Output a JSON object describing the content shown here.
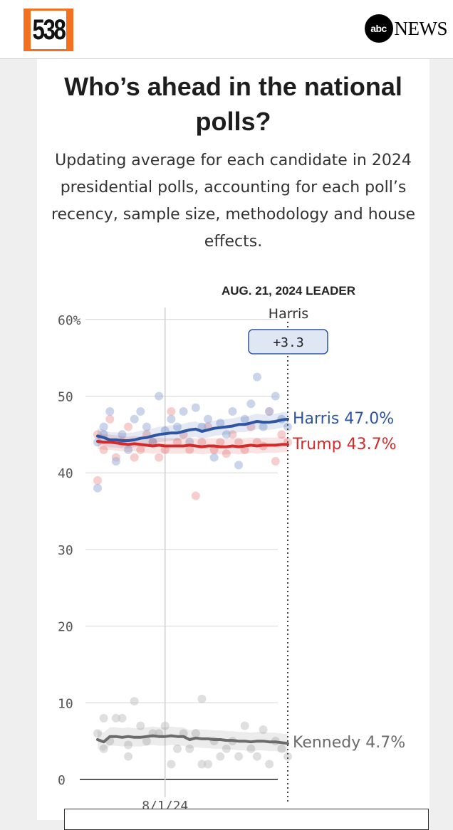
{
  "header": {
    "logo_text": "538",
    "partner_badge": "abc",
    "partner_name": "NEWS"
  },
  "title": "Who’s ahead in the national polls?",
  "subtitle": "Updating average for each candidate in 2024 presidential polls, accounting for each poll’s recency, sample size, methodology and house effects.",
  "colors": {
    "harris": "#2d55a3",
    "trump": "#d42a2a",
    "kennedy": "#6b6b6b",
    "accent_orange": "#f37021",
    "badge_bg": "#dfe6f4"
  },
  "chart_data": {
    "type": "line",
    "leader_date": "AUG. 21, 2024 LEADER",
    "leader_name": "Harris",
    "leader_margin": "+3.3",
    "y_ticks": [
      "60%",
      "50",
      "40",
      "30",
      "20",
      "10",
      "0"
    ],
    "y_tick_values": [
      60,
      50,
      40,
      30,
      20,
      10,
      0
    ],
    "ylim": [
      0,
      60
    ],
    "x_tick_label": "8/1/24",
    "x_tick_date": "2024-08-01",
    "xlim": [
      "2024-07-21",
      "2024-08-21"
    ],
    "grid": true,
    "series": [
      {
        "name": "Harris",
        "end_label": "Harris 47.0%",
        "points": [
          [
            "2024-07-21",
            44.8
          ],
          [
            "2024-07-22",
            44.6
          ],
          [
            "2024-07-23",
            44.3
          ],
          [
            "2024-07-24",
            44.3
          ],
          [
            "2024-07-25",
            44.2
          ],
          [
            "2024-07-26",
            44.2
          ],
          [
            "2024-07-27",
            44.3
          ],
          [
            "2024-07-28",
            44.5
          ],
          [
            "2024-07-29",
            44.6
          ],
          [
            "2024-07-30",
            44.8
          ],
          [
            "2024-07-31",
            45.0
          ],
          [
            "2024-08-01",
            45.1
          ],
          [
            "2024-08-02",
            45.2
          ],
          [
            "2024-08-03",
            45.2
          ],
          [
            "2024-08-04",
            45.4
          ],
          [
            "2024-08-05",
            45.6
          ],
          [
            "2024-08-06",
            45.7
          ],
          [
            "2024-08-07",
            45.4
          ],
          [
            "2024-08-08",
            45.6
          ],
          [
            "2024-08-09",
            45.8
          ],
          [
            "2024-08-10",
            45.9
          ],
          [
            "2024-08-11",
            46.0
          ],
          [
            "2024-08-12",
            46.1
          ],
          [
            "2024-08-13",
            46.3
          ],
          [
            "2024-08-14",
            46.3
          ],
          [
            "2024-08-15",
            46.5
          ],
          [
            "2024-08-16",
            46.7
          ],
          [
            "2024-08-17",
            46.6
          ],
          [
            "2024-08-18",
            46.6
          ],
          [
            "2024-08-19",
            46.7
          ],
          [
            "2024-08-20",
            46.9
          ],
          [
            "2024-08-21",
            47.0
          ]
        ]
      },
      {
        "name": "Trump",
        "end_label": "Trump 43.7%",
        "points": [
          [
            "2024-07-21",
            44.1
          ],
          [
            "2024-07-22",
            44.0
          ],
          [
            "2024-07-23",
            44.0
          ],
          [
            "2024-07-24",
            43.9
          ],
          [
            "2024-07-25",
            43.8
          ],
          [
            "2024-07-26",
            43.7
          ],
          [
            "2024-07-27",
            43.8
          ],
          [
            "2024-07-28",
            43.7
          ],
          [
            "2024-07-29",
            43.6
          ],
          [
            "2024-07-30",
            43.5
          ],
          [
            "2024-07-31",
            43.6
          ],
          [
            "2024-08-01",
            43.5
          ],
          [
            "2024-08-02",
            43.5
          ],
          [
            "2024-08-03",
            43.5
          ],
          [
            "2024-08-04",
            43.5
          ],
          [
            "2024-08-05",
            43.6
          ],
          [
            "2024-08-06",
            43.5
          ],
          [
            "2024-08-07",
            43.4
          ],
          [
            "2024-08-08",
            43.5
          ],
          [
            "2024-08-09",
            43.5
          ],
          [
            "2024-08-10",
            43.4
          ],
          [
            "2024-08-11",
            43.4
          ],
          [
            "2024-08-12",
            43.5
          ],
          [
            "2024-08-13",
            43.4
          ],
          [
            "2024-08-14",
            43.5
          ],
          [
            "2024-08-15",
            43.6
          ],
          [
            "2024-08-16",
            43.5
          ],
          [
            "2024-08-17",
            43.6
          ],
          [
            "2024-08-18",
            43.6
          ],
          [
            "2024-08-19",
            43.6
          ],
          [
            "2024-08-20",
            43.7
          ],
          [
            "2024-08-21",
            43.7
          ]
        ]
      },
      {
        "name": "Kennedy",
        "end_label": "Kennedy 4.7%",
        "points": [
          [
            "2024-07-21",
            5.2
          ],
          [
            "2024-07-22",
            4.9
          ],
          [
            "2024-07-23",
            5.6
          ],
          [
            "2024-07-24",
            5.6
          ],
          [
            "2024-07-25",
            5.5
          ],
          [
            "2024-07-26",
            5.6
          ],
          [
            "2024-07-27",
            5.5
          ],
          [
            "2024-07-28",
            5.5
          ],
          [
            "2024-07-29",
            5.6
          ],
          [
            "2024-07-30",
            5.7
          ],
          [
            "2024-07-31",
            5.6
          ],
          [
            "2024-08-01",
            5.6
          ],
          [
            "2024-08-02",
            5.7
          ],
          [
            "2024-08-03",
            5.6
          ],
          [
            "2024-08-04",
            5.6
          ],
          [
            "2024-08-05",
            5.2
          ],
          [
            "2024-08-06",
            5.4
          ],
          [
            "2024-08-07",
            5.3
          ],
          [
            "2024-08-08",
            5.3
          ],
          [
            "2024-08-09",
            5.2
          ],
          [
            "2024-08-10",
            5.2
          ],
          [
            "2024-08-11",
            5.1
          ],
          [
            "2024-08-12",
            5.1
          ],
          [
            "2024-08-13",
            5.0
          ],
          [
            "2024-08-14",
            5.0
          ],
          [
            "2024-08-15",
            4.9
          ],
          [
            "2024-08-16",
            5.0
          ],
          [
            "2024-08-17",
            5.0
          ],
          [
            "2024-08-18",
            4.9
          ],
          [
            "2024-08-19",
            4.9
          ],
          [
            "2024-08-20",
            4.8
          ],
          [
            "2024-08-21",
            4.7
          ]
        ]
      }
    ],
    "polls": {
      "Harris": [
        [
          "2024-07-21",
          38.0
        ],
        [
          "2024-07-21",
          44.0
        ],
        [
          "2024-07-22",
          46.0
        ],
        [
          "2024-07-22",
          45.0
        ],
        [
          "2024-07-23",
          48.0
        ],
        [
          "2024-07-24",
          41.5
        ],
        [
          "2024-07-25",
          45.0
        ],
        [
          "2024-07-26",
          43.0
        ],
        [
          "2024-07-27",
          47.0
        ],
        [
          "2024-07-28",
          48.0
        ],
        [
          "2024-07-29",
          46.0
        ],
        [
          "2024-07-30",
          44.0
        ],
        [
          "2024-07-31",
          50.0
        ],
        [
          "2024-08-01",
          45.5
        ],
        [
          "2024-08-02",
          47.0
        ],
        [
          "2024-08-03",
          46.0
        ],
        [
          "2024-08-04",
          48.0
        ],
        [
          "2024-08-05",
          44.0
        ],
        [
          "2024-08-06",
          48.5
        ],
        [
          "2024-08-07",
          46.0
        ],
        [
          "2024-08-08",
          47.0
        ],
        [
          "2024-08-09",
          42.0
        ],
        [
          "2024-08-10",
          46.5
        ],
        [
          "2024-08-11",
          45.0
        ],
        [
          "2024-08-12",
          48.0
        ],
        [
          "2024-08-13",
          41.0
        ],
        [
          "2024-08-14",
          47.0
        ],
        [
          "2024-08-15",
          49.0
        ],
        [
          "2024-08-16",
          52.5
        ],
        [
          "2024-08-17",
          46.0
        ],
        [
          "2024-08-18",
          48.0
        ],
        [
          "2024-08-19",
          50.0
        ],
        [
          "2024-08-20",
          47.0
        ],
        [
          "2024-08-21",
          46.0
        ]
      ],
      "Trump": [
        [
          "2024-07-21",
          39.0
        ],
        [
          "2024-07-21",
          45.0
        ],
        [
          "2024-07-22",
          43.0
        ],
        [
          "2024-07-23",
          47.0
        ],
        [
          "2024-07-24",
          42.0
        ],
        [
          "2024-07-25",
          44.0
        ],
        [
          "2024-07-26",
          46.0
        ],
        [
          "2024-07-27",
          42.0
        ],
        [
          "2024-07-28",
          43.0
        ],
        [
          "2024-07-29",
          45.0
        ],
        [
          "2024-07-30",
          44.0
        ],
        [
          "2024-07-31",
          42.0
        ],
        [
          "2024-08-01",
          43.0
        ],
        [
          "2024-08-02",
          48.0
        ],
        [
          "2024-08-03",
          44.0
        ],
        [
          "2024-08-04",
          45.0
        ],
        [
          "2024-08-05",
          43.0
        ],
        [
          "2024-08-06",
          37.0
        ],
        [
          "2024-08-07",
          44.0
        ],
        [
          "2024-08-08",
          46.0
        ],
        [
          "2024-08-09",
          43.0
        ],
        [
          "2024-08-10",
          44.0
        ],
        [
          "2024-08-11",
          42.5
        ],
        [
          "2024-08-12",
          45.0
        ],
        [
          "2024-08-13",
          44.0
        ],
        [
          "2024-08-14",
          43.0
        ],
        [
          "2024-08-15",
          46.0
        ],
        [
          "2024-08-16",
          44.0
        ],
        [
          "2024-08-17",
          43.5
        ],
        [
          "2024-08-18",
          48.0
        ],
        [
          "2024-08-19",
          41.5
        ],
        [
          "2024-08-20",
          45.0
        ],
        [
          "2024-08-21",
          44.0
        ]
      ],
      "Kennedy": [
        [
          "2024-07-21",
          6.0
        ],
        [
          "2024-07-22",
          8.0
        ],
        [
          "2024-07-22",
          4.0
        ],
        [
          "2024-07-23",
          5.0
        ],
        [
          "2024-07-24",
          8.0
        ],
        [
          "2024-07-25",
          8.0
        ],
        [
          "2024-07-26",
          4.5
        ],
        [
          "2024-07-26",
          3.0
        ],
        [
          "2024-07-27",
          10.2
        ],
        [
          "2024-07-28",
          7.0
        ],
        [
          "2024-07-29",
          5.0
        ],
        [
          "2024-07-30",
          6.0
        ],
        [
          "2024-07-31",
          6.0
        ],
        [
          "2024-08-01",
          7.0
        ],
        [
          "2024-08-02",
          2.0
        ],
        [
          "2024-08-03",
          4.0
        ],
        [
          "2024-08-04",
          6.0
        ],
        [
          "2024-08-05",
          4.0
        ],
        [
          "2024-08-06",
          6.0
        ],
        [
          "2024-08-07",
          10.5
        ],
        [
          "2024-08-07",
          2.0
        ],
        [
          "2024-08-08",
          2.0
        ],
        [
          "2024-08-09",
          5.0
        ],
        [
          "2024-08-10",
          3.0
        ],
        [
          "2024-08-11",
          4.0
        ],
        [
          "2024-08-12",
          5.0
        ],
        [
          "2024-08-13",
          3.0
        ],
        [
          "2024-08-14",
          7.0
        ],
        [
          "2024-08-15",
          4.0
        ],
        [
          "2024-08-16",
          3.0
        ],
        [
          "2024-08-17",
          6.5
        ],
        [
          "2024-08-18",
          2.0
        ],
        [
          "2024-08-19",
          5.0
        ],
        [
          "2024-08-20",
          4.0
        ],
        [
          "2024-08-21",
          3.0
        ]
      ]
    }
  }
}
